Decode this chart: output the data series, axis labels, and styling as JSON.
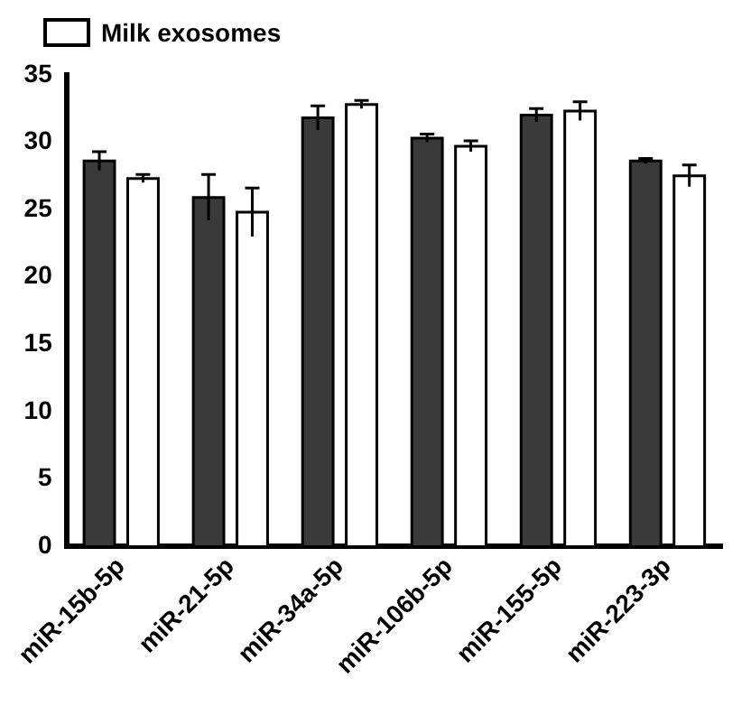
{
  "chart_data": {
    "type": "bar",
    "categories": [
      "miR-15b-5p",
      "miR-21-5p",
      "miR-34a-5p",
      "miR-106b-5p",
      "miR-155-5p",
      "miR-223-3p"
    ],
    "series": [
      {
        "color": "#3a3a3a",
        "values": [
          28.6,
          25.9,
          31.8,
          30.3,
          32.0,
          28.6
        ],
        "errors": [
          0.7,
          1.7,
          0.9,
          0.3,
          0.5,
          0.2
        ]
      },
      {
        "name": "Milk exosomes",
        "color": "#ffffff",
        "values": [
          27.3,
          24.8,
          32.8,
          29.7,
          32.3,
          27.5
        ],
        "errors": [
          0.3,
          1.8,
          0.3,
          0.4,
          0.7,
          0.8
        ]
      }
    ],
    "ylim": [
      0,
      35
    ],
    "yticks": [
      0,
      5,
      10,
      15,
      20,
      25,
      30,
      35
    ],
    "grid": false,
    "legend": "top"
  }
}
